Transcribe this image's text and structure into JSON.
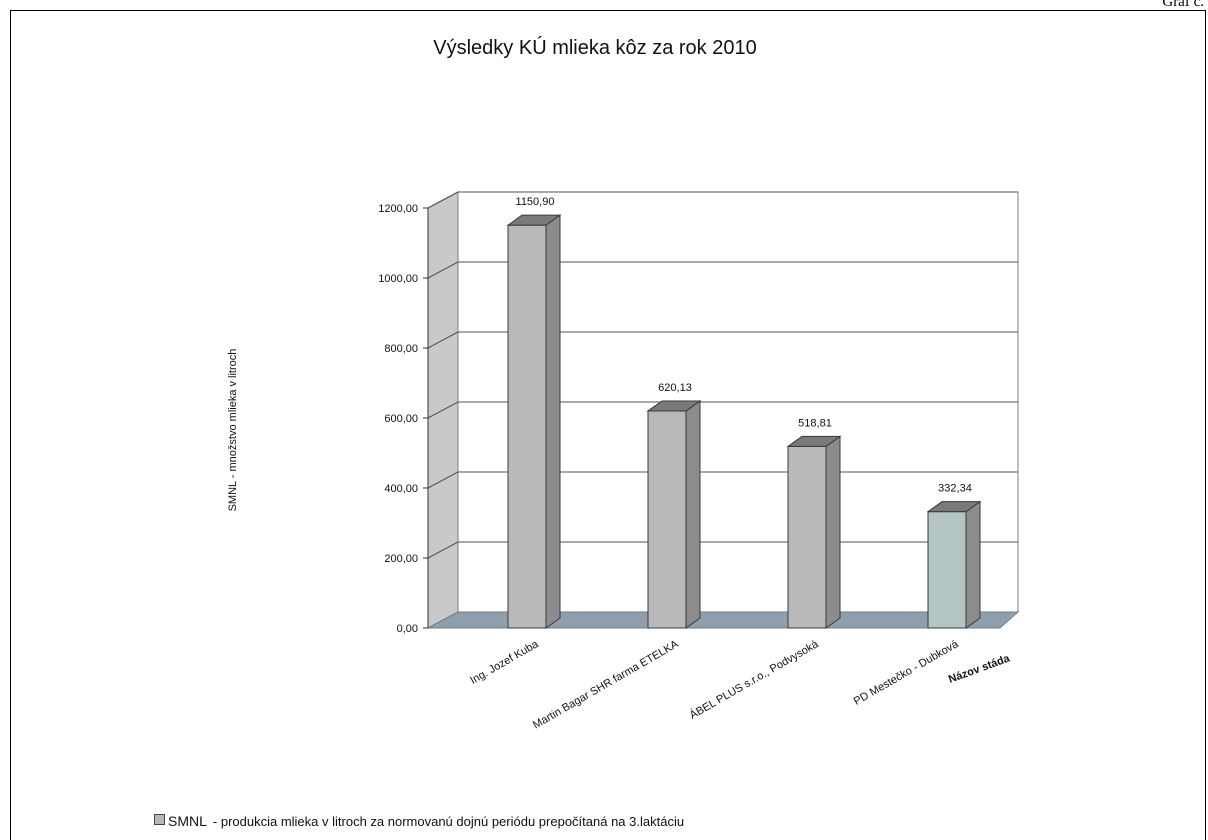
{
  "page": {
    "corner_label": "Graf č."
  },
  "chart_data": {
    "type": "bar",
    "title": "Výsledky KÚ mlieka kôz za rok 2010",
    "categories": [
      "Ing. Jozef Kuba",
      "Martin Bagar SHR farma ETELKA",
      "ÁBEL PLUS s.r.o., Podvysoká",
      "PD Mestečko - Dubková"
    ],
    "series": [
      {
        "name": "SMNL",
        "values": [
          1150.9,
          620.13,
          518.81,
          332.34
        ]
      }
    ],
    "value_labels": [
      "1150,90",
      "620,13",
      "518,81",
      "332,34"
    ],
    "ylabel": "SMNL - množstvo mlieka v litroch",
    "xlabel": "Názov stáda",
    "ylim": [
      0,
      1200
    ],
    "yticks": [
      "0,00",
      "200,00",
      "400,00",
      "600,00",
      "800,00",
      "1000,00",
      "1200,00"
    ],
    "grid": true,
    "three_d": true,
    "bar_colors": [
      "#b9b9b9",
      "#b9b9b9",
      "#b9b9b9",
      "#b4c4c2"
    ],
    "legend": {
      "position": "bottom-left",
      "label": "SMNL",
      "description": "- produkcia mlieka v litroch za normovanú dojnú periódu prepočítaná na 3.laktáciu"
    }
  }
}
